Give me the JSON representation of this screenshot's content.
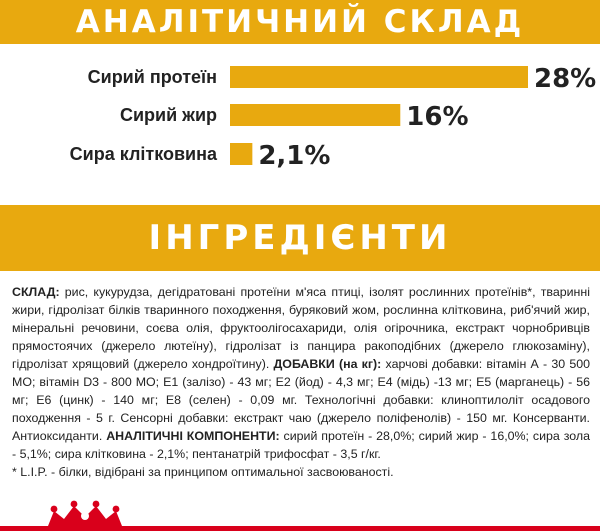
{
  "sections": {
    "analytical_title": "АНАЛІТИЧНИЙ СКЛАД",
    "ingredients_title": "ІНГРЕДІЄНТИ"
  },
  "chart_data": {
    "type": "bar",
    "orientation": "horizontal",
    "categories": [
      "Сирий протеїн",
      "Сирий жир",
      "Сира клітковина"
    ],
    "values": [
      28,
      16,
      2.1
    ],
    "value_labels": [
      "28%",
      "16%",
      "2,1%"
    ],
    "xlim": [
      0,
      28
    ],
    "grid": false,
    "title": "",
    "xlabel": "",
    "ylabel": "",
    "bar_color": "#e8a90f"
  },
  "ingredients": {
    "composition_label": "СКЛАД:",
    "composition_text": " рис, кукурудза, дегідратовані протеїни м'яса птиці, ізолят рослинних протеїнів*, тваринні жири, гідролізат білків тваринного походження, буряковий жом, рослинна клітковина, риб'ячий жир, мінеральні речовини, соєва олія, фруктоолігосахариди, олія огірочника, екстракт чорнобривців прямостоячих (джерело лютеїну), гідролізат із панцира ракоподібних (джерело глюкозаміну), гідролізат хрящовий (джерело хондроїтину). ",
    "additives_label": "ДОБАВКИ (на кг):",
    "additives_text": " харчові добавки: вітамін А - 30 500 МО; вітамін D3 - 800 МО; Е1 (залізо) - 43 мг; Е2 (йод) - 4,3 мг; Е4 (мідь) -13 мг; Е5 (марганець) - 56 мг; Е6 (цинк) - 140 мг; Е8 (селен) - 0,09 мг. Технологічні добавки: клиноптилоліт осадового походження - 5 г. Сенсорні добавки: екстракт чаю (джерело поліфенолів) - 150 мг. Консерванти. Антиоксиданти. ",
    "analytical_label": "АНАЛІТИЧНІ КОМПОНЕНТИ:",
    "analytical_text": " сирий протеїн - 28,0%; сирий жир - 16,0%; сира зола - 5,1%; сира клітковина - 2,1%; пентанатрій трифосфат - 3,5 г/кг.",
    "footnote": "* L.I.P. - білки, відібрані за принципом оптимальної засвоюваності."
  },
  "brand": {
    "logo_icon": "royal-canin-crown-icon",
    "accent_color": "#d9001b"
  }
}
